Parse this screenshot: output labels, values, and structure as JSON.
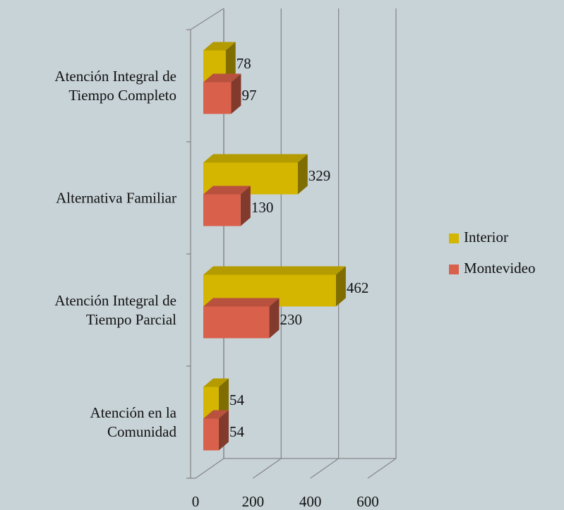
{
  "chart_data": {
    "type": "bar3d_horizontal",
    "categories": [
      "Atención Integral de Tiempo Completo",
      "Alternativa Familiar",
      "Atención Integral de Tiempo Parcial",
      "Atención en la Comunidad"
    ],
    "series": [
      {
        "name": "Interior",
        "color": "#d4b600",
        "values": [
          78,
          329,
          462,
          54
        ]
      },
      {
        "name": "Montevideo",
        "color": "#d9604a",
        "values": [
          97,
          130,
          230,
          54
        ]
      }
    ],
    "xlim": [
      0,
      600
    ],
    "xticks": [
      0,
      200,
      400,
      600
    ],
    "grid": true,
    "legend": "right"
  }
}
